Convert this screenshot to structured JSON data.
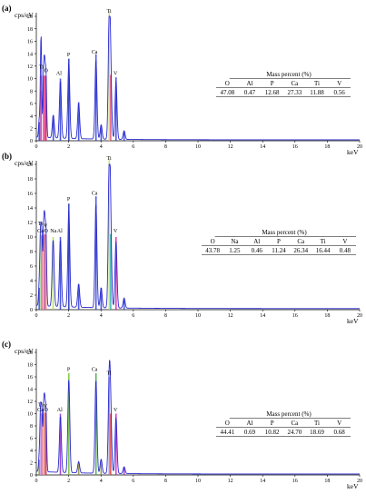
{
  "chart_data": [
    {
      "type": "line",
      "panel_label": "(a)",
      "ylabel": "cps/eV",
      "xlabel": "keV",
      "xlim": [
        0,
        20
      ],
      "ylim": [
        0,
        20
      ],
      "x_ticks": [
        0,
        2,
        4,
        6,
        8,
        10,
        12,
        14,
        16,
        18,
        20
      ],
      "y_ticks": [
        0,
        2,
        4,
        6,
        8,
        10,
        12,
        14,
        16,
        18,
        20
      ],
      "peak_labels": [
        {
          "text": "Ti",
          "x": 0.3,
          "y": 11.6
        },
        {
          "text": "O",
          "x": 0.6,
          "y": 11.0
        },
        {
          "text": "Al",
          "x": 1.4,
          "y": 10.6
        },
        {
          "text": "P",
          "x": 2.0,
          "y": 13.6
        },
        {
          "text": "Ca",
          "x": 3.6,
          "y": 14.0
        },
        {
          "text": "Ti",
          "x": 4.5,
          "y": 20.6
        },
        {
          "text": "V",
          "x": 4.9,
          "y": 10.6
        }
      ],
      "peaks": [
        {
          "x": 0.18,
          "y": 3.0,
          "color": "#2f3fd6"
        },
        {
          "x": 0.28,
          "y": 8.0,
          "color": "#2f3fd6"
        },
        {
          "x": 0.3,
          "y": 10.5,
          "color": "#ff4a8a"
        },
        {
          "x": 0.45,
          "y": 10.4,
          "color": "#d0409a"
        },
        {
          "x": 0.52,
          "y": 10.5,
          "color": "#ff4a8a"
        },
        {
          "x": 0.6,
          "y": 10.4,
          "color": "#c02050"
        },
        {
          "x": 1.05,
          "y": 4.0,
          "color": "#2f3fd6"
        },
        {
          "x": 1.49,
          "y": 10.0,
          "color": "#2f3fd6"
        },
        {
          "x": 2.01,
          "y": 13.2,
          "color": "#1a2ab8"
        },
        {
          "x": 2.62,
          "y": 6.2,
          "color": "#2f3fd6"
        },
        {
          "x": 3.69,
          "y": 13.9,
          "color": "#2f3fd6"
        },
        {
          "x": 4.01,
          "y": 2.5,
          "color": "#2f3fd6"
        },
        {
          "x": 4.51,
          "y": 20.8,
          "color": "#c8e070"
        },
        {
          "x": 4.6,
          "y": 10.6,
          "color": "#e05070"
        },
        {
          "x": 4.93,
          "y": 10.2,
          "color": "#2f3fd6"
        },
        {
          "x": 5.43,
          "y": 1.5,
          "color": "#2f3fd6"
        }
      ],
      "table": {
        "title": "Mass percent (%)",
        "headers": [
          "O",
          "Al",
          "P",
          "Ca",
          "Ti",
          "V"
        ],
        "values": [
          "47.08",
          "0.47",
          "12.68",
          "27.33",
          "11.88",
          "0.56"
        ]
      }
    },
    {
      "type": "line",
      "panel_label": "(b)",
      "ylabel": "cps/eV",
      "xlabel": "keV",
      "xlim": [
        0,
        20
      ],
      "ylim": [
        0,
        20
      ],
      "x_ticks": [
        0,
        2,
        4,
        6,
        8,
        10,
        12,
        14,
        16,
        18,
        20
      ],
      "y_ticks": [
        0,
        2,
        4,
        6,
        8,
        10,
        12,
        14,
        16,
        18,
        20
      ],
      "peak_labels": [
        {
          "text": "Ti",
          "x": 0.25,
          "y": 11.6
        },
        {
          "text": "Ca",
          "x": 0.25,
          "y": 10.6
        },
        {
          "text": "V",
          "x": 0.58,
          "y": 11.3
        },
        {
          "text": "O",
          "x": 0.6,
          "y": 10.6
        },
        {
          "text": "Na",
          "x": 1.05,
          "y": 10.6
        },
        {
          "text": "Al",
          "x": 1.45,
          "y": 10.6
        },
        {
          "text": "P",
          "x": 2.0,
          "y": 15.0
        },
        {
          "text": "Ca",
          "x": 3.6,
          "y": 15.8
        },
        {
          "text": "Ti",
          "x": 4.5,
          "y": 20.6
        },
        {
          "text": "V",
          "x": 4.9,
          "y": 10.6
        }
      ],
      "peaks": [
        {
          "x": 0.18,
          "y": 3.0,
          "color": "#2f3fd6"
        },
        {
          "x": 0.26,
          "y": 10.3,
          "color": "#a8d8a0"
        },
        {
          "x": 0.34,
          "y": 10.2,
          "color": "#ff4a8a"
        },
        {
          "x": 0.45,
          "y": 10.2,
          "color": "#8fd28f"
        },
        {
          "x": 0.52,
          "y": 10.4,
          "color": "#d0409a"
        },
        {
          "x": 0.6,
          "y": 10.3,
          "color": "#ff8080"
        },
        {
          "x": 1.04,
          "y": 10.0,
          "color": "#b0e040"
        },
        {
          "x": 1.49,
          "y": 10.0,
          "color": "#2f3fd6"
        },
        {
          "x": 2.01,
          "y": 14.6,
          "color": "#1a2ab8"
        },
        {
          "x": 2.62,
          "y": 3.5,
          "color": "#2f3fd6"
        },
        {
          "x": 3.69,
          "y": 15.6,
          "color": "#2f3fd6"
        },
        {
          "x": 4.01,
          "y": 3.0,
          "color": "#2f3fd6"
        },
        {
          "x": 4.51,
          "y": 20.8,
          "color": "#c8e070"
        },
        {
          "x": 4.6,
          "y": 10.4,
          "color": "#30b0a0"
        },
        {
          "x": 4.93,
          "y": 10.0,
          "color": "#e020a0"
        },
        {
          "x": 5.43,
          "y": 1.5,
          "color": "#2f3fd6"
        }
      ],
      "table": {
        "title": "Mass percent (%)",
        "headers": [
          "O",
          "Na",
          "Al",
          "P",
          "Ca",
          "Ti",
          "V"
        ],
        "values": [
          "43.78",
          "1.25",
          "0.46",
          "11.24",
          "26.34",
          "16.44",
          "0.48"
        ]
      }
    },
    {
      "type": "line",
      "panel_label": "(c)",
      "ylabel": "cps/eV",
      "xlabel": "keV",
      "xlim": [
        0,
        20
      ],
      "ylim": [
        0,
        20
      ],
      "x_ticks": [
        0,
        2,
        4,
        6,
        8,
        10,
        12,
        14,
        16,
        18,
        20
      ],
      "y_ticks": [
        0,
        2,
        4,
        6,
        8,
        10,
        12,
        14,
        16,
        18,
        20
      ],
      "peak_labels": [
        {
          "text": "Ti",
          "x": 0.25,
          "y": 11.2
        },
        {
          "text": "V",
          "x": 0.55,
          "y": 11.0
        },
        {
          "text": "Ca",
          "x": 0.25,
          "y": 10.4
        },
        {
          "text": "O",
          "x": 0.6,
          "y": 10.4
        },
        {
          "text": "Al",
          "x": 1.45,
          "y": 10.4
        },
        {
          "text": "P",
          "x": 2.0,
          "y": 17.0
        },
        {
          "text": "Ca",
          "x": 3.6,
          "y": 17.0
        },
        {
          "text": "Ti",
          "x": 4.5,
          "y": 16.4
        },
        {
          "text": "V",
          "x": 4.9,
          "y": 10.4
        }
      ],
      "peaks": [
        {
          "x": 0.18,
          "y": 2.5,
          "color": "#8a8a40"
        },
        {
          "x": 0.26,
          "y": 10.2,
          "color": "#c0a0f0"
        },
        {
          "x": 0.34,
          "y": 10.0,
          "color": "#ff4a8a"
        },
        {
          "x": 0.45,
          "y": 10.0,
          "color": "#8fd28f"
        },
        {
          "x": 0.52,
          "y": 10.2,
          "color": "#ff7070"
        },
        {
          "x": 0.6,
          "y": 10.1,
          "color": "#c03060"
        },
        {
          "x": 1.49,
          "y": 10.0,
          "color": "#9030d0"
        },
        {
          "x": 2.01,
          "y": 16.6,
          "color": "#70c030"
        },
        {
          "x": 2.62,
          "y": 2.0,
          "color": "#8a8a40"
        },
        {
          "x": 3.69,
          "y": 16.6,
          "color": "#40a040"
        },
        {
          "x": 4.01,
          "y": 2.5,
          "color": "#8a8a40"
        },
        {
          "x": 4.51,
          "y": 16.0,
          "color": "#9090d0"
        },
        {
          "x": 4.6,
          "y": 10.0,
          "color": "#e04040"
        },
        {
          "x": 4.93,
          "y": 10.0,
          "color": "#d020c0"
        },
        {
          "x": 5.43,
          "y": 1.2,
          "color": "#9030d0"
        }
      ],
      "table": {
        "title": "Mass percent (%)",
        "headers": [
          "O",
          "Al",
          "P",
          "Ca",
          "Ti",
          "V"
        ],
        "values": [
          "44.41",
          "0.69",
          "10.82",
          "24.70",
          "18.69",
          "0.68"
        ]
      }
    }
  ]
}
